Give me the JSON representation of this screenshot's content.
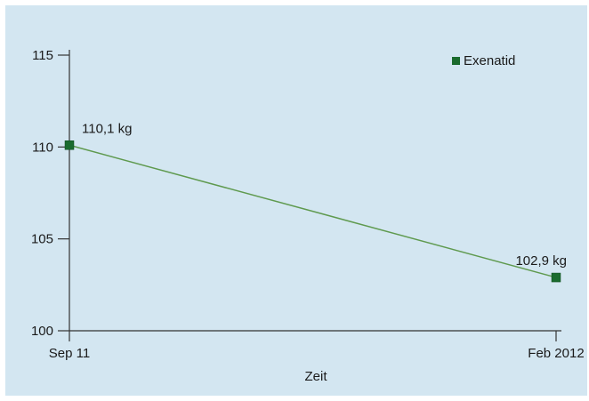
{
  "chart_data": {
    "type": "line",
    "categories": [
      "Sep 11",
      "Feb 2012"
    ],
    "series": [
      {
        "name": "Exenatid",
        "values": [
          110.1,
          102.9
        ],
        "data_labels": [
          "110,1 kg",
          "102,9 kg"
        ],
        "color": "#1a6b2e",
        "line_color": "#5f9a4f"
      }
    ],
    "xlabel": "Zeit",
    "ylabel": "",
    "ylim": [
      100,
      115
    ],
    "yticks": [
      100,
      105,
      110,
      115
    ],
    "grid": false,
    "legend_position": "top-right",
    "background": "#d3e6f1"
  }
}
